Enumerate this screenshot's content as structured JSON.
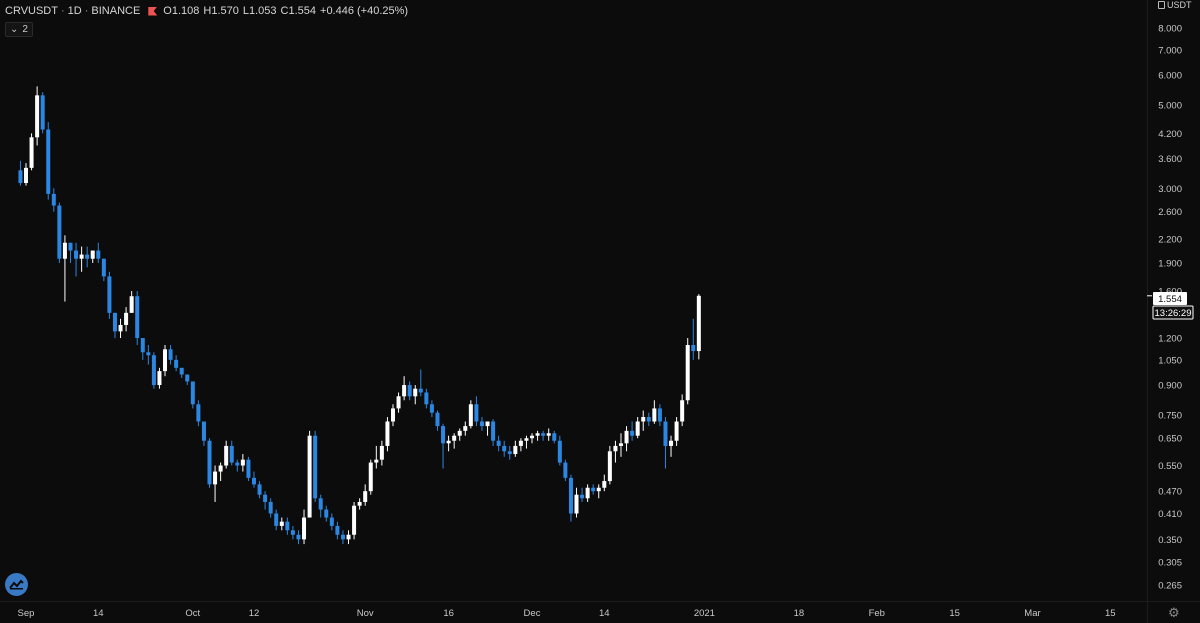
{
  "legend": {
    "symbol": "CRVUSDT",
    "interval": "1D",
    "exchange": "BINANCE",
    "open": "O1.108",
    "high": "H1.570",
    "low": "L1.053",
    "close": "C1.554",
    "change": "+0.446 (+40.25%)"
  },
  "indicator_toggle": "2",
  "price_axis": {
    "currency": "USDT"
  },
  "last_price": {
    "price": "1.554",
    "countdown": "13:26:29"
  },
  "colors": {
    "up": "#ffffff",
    "down": "#2c87e3",
    "background": "#0c0c0c",
    "text": "#c9c9c9"
  },
  "icons": {
    "logo": "tradingview-logo-icon",
    "settings": "gear-icon"
  },
  "chart_data": {
    "type": "candlestick",
    "title": "",
    "xlabel": "",
    "ylabel": "",
    "y_scale": "log",
    "ylim": [
      0.24,
      9.5
    ],
    "y_ticks": [
      "8.000",
      "7.000",
      "6.000",
      "5.000",
      "4.200",
      "3.600",
      "3.000",
      "2.600",
      "2.200",
      "1.900",
      "1.600",
      "1.200",
      "1.050",
      "0.900",
      "0.750",
      "0.650",
      "0.550",
      "0.470",
      "0.410",
      "0.350",
      "0.305",
      "0.265"
    ],
    "x_ticks": [
      {
        "label": "Sep",
        "date": "2020-09-01"
      },
      {
        "label": "14",
        "date": "2020-09-14"
      },
      {
        "label": "Oct",
        "date": "2020-10-01"
      },
      {
        "label": "12",
        "date": "2020-10-12"
      },
      {
        "label": "Nov",
        "date": "2020-11-01"
      },
      {
        "label": "16",
        "date": "2020-11-16"
      },
      {
        "label": "Dec",
        "date": "2020-12-01"
      },
      {
        "label": "14",
        "date": "2020-12-14"
      },
      {
        "label": "2021",
        "date": "2021-01-01"
      },
      {
        "label": "18",
        "date": "2021-01-18"
      },
      {
        "label": "Feb",
        "date": "2021-02-01"
      },
      {
        "label": "15",
        "date": "2021-02-15"
      },
      {
        "label": "Mar",
        "date": "2021-03-01"
      },
      {
        "label": "15",
        "date": "2021-03-15"
      }
    ],
    "x_range": [
      "2020-09-01",
      "2021-03-18"
    ],
    "grid": false,
    "first_date": "2020-08-31",
    "candles": [
      [
        3.35,
        3.55,
        3.05,
        3.1
      ],
      [
        3.1,
        3.5,
        3.05,
        3.4
      ],
      [
        3.4,
        4.2,
        3.35,
        4.1
      ],
      [
        4.1,
        5.6,
        3.9,
        5.3
      ],
      [
        5.3,
        5.4,
        4.2,
        4.3
      ],
      [
        4.3,
        4.5,
        2.8,
        2.9
      ],
      [
        2.9,
        3.0,
        2.6,
        2.7
      ],
      [
        2.7,
        2.75,
        1.9,
        1.95
      ],
      [
        1.95,
        2.25,
        1.5,
        2.15
      ],
      [
        2.15,
        2.15,
        1.9,
        2.05
      ],
      [
        2.05,
        2.15,
        1.75,
        1.95
      ],
      [
        1.95,
        2.1,
        1.8,
        2.0
      ],
      [
        2.0,
        2.1,
        1.85,
        1.95
      ],
      [
        1.95,
        2.05,
        1.9,
        2.05
      ],
      [
        2.05,
        2.15,
        1.9,
        1.95
      ],
      [
        1.95,
        1.95,
        1.7,
        1.75
      ],
      [
        1.75,
        1.8,
        1.35,
        1.4
      ],
      [
        1.4,
        1.4,
        1.2,
        1.25
      ],
      [
        1.25,
        1.35,
        1.2,
        1.3
      ],
      [
        1.3,
        1.45,
        1.25,
        1.4
      ],
      [
        1.4,
        1.6,
        1.4,
        1.55
      ],
      [
        1.55,
        1.6,
        1.15,
        1.2
      ],
      [
        1.2,
        1.2,
        1.05,
        1.1
      ],
      [
        1.1,
        1.15,
        1.02,
        1.08
      ],
      [
        1.08,
        1.1,
        0.88,
        0.9
      ],
      [
        0.9,
        1.0,
        0.88,
        0.98
      ],
      [
        0.98,
        1.15,
        0.95,
        1.12
      ],
      [
        1.12,
        1.15,
        1.02,
        1.05
      ],
      [
        1.05,
        1.08,
        0.98,
        1.0
      ],
      [
        1.0,
        1.0,
        0.94,
        0.96
      ],
      [
        0.96,
        0.96,
        0.9,
        0.92
      ],
      [
        0.92,
        0.92,
        0.78,
        0.8
      ],
      [
        0.8,
        0.82,
        0.7,
        0.72
      ],
      [
        0.72,
        0.72,
        0.62,
        0.64
      ],
      [
        0.64,
        0.65,
        0.48,
        0.49
      ],
      [
        0.49,
        0.55,
        0.44,
        0.53
      ],
      [
        0.53,
        0.56,
        0.5,
        0.55
      ],
      [
        0.55,
        0.64,
        0.54,
        0.62
      ],
      [
        0.62,
        0.64,
        0.55,
        0.56
      ],
      [
        0.56,
        0.57,
        0.53,
        0.55
      ],
      [
        0.55,
        0.59,
        0.53,
        0.57
      ],
      [
        0.57,
        0.58,
        0.5,
        0.51
      ],
      [
        0.51,
        0.53,
        0.48,
        0.49
      ],
      [
        0.49,
        0.5,
        0.45,
        0.46
      ],
      [
        0.46,
        0.47,
        0.42,
        0.44
      ],
      [
        0.44,
        0.45,
        0.4,
        0.41
      ],
      [
        0.41,
        0.42,
        0.37,
        0.38
      ],
      [
        0.38,
        0.4,
        0.37,
        0.39
      ],
      [
        0.39,
        0.4,
        0.36,
        0.37
      ],
      [
        0.37,
        0.38,
        0.35,
        0.36
      ],
      [
        0.36,
        0.37,
        0.34,
        0.35
      ],
      [
        0.35,
        0.42,
        0.34,
        0.4
      ],
      [
        0.4,
        0.68,
        0.4,
        0.66
      ],
      [
        0.66,
        0.68,
        0.44,
        0.45
      ],
      [
        0.45,
        0.46,
        0.4,
        0.42
      ],
      [
        0.42,
        0.43,
        0.39,
        0.4
      ],
      [
        0.4,
        0.41,
        0.37,
        0.38
      ],
      [
        0.38,
        0.39,
        0.35,
        0.36
      ],
      [
        0.36,
        0.37,
        0.34,
        0.35
      ],
      [
        0.35,
        0.37,
        0.34,
        0.36
      ],
      [
        0.36,
        0.44,
        0.35,
        0.43
      ],
      [
        0.43,
        0.45,
        0.42,
        0.44
      ],
      [
        0.44,
        0.49,
        0.43,
        0.47
      ],
      [
        0.47,
        0.57,
        0.46,
        0.56
      ],
      [
        0.56,
        0.62,
        0.54,
        0.57
      ],
      [
        0.57,
        0.64,
        0.55,
        0.62
      ],
      [
        0.62,
        0.74,
        0.6,
        0.72
      ],
      [
        0.72,
        0.8,
        0.7,
        0.78
      ],
      [
        0.78,
        0.86,
        0.76,
        0.84
      ],
      [
        0.84,
        0.95,
        0.82,
        0.9
      ],
      [
        0.9,
        0.92,
        0.82,
        0.84
      ],
      [
        0.84,
        0.9,
        0.8,
        0.88
      ],
      [
        0.88,
        0.99,
        0.84,
        0.86
      ],
      [
        0.86,
        0.88,
        0.78,
        0.8
      ],
      [
        0.8,
        0.82,
        0.74,
        0.76
      ],
      [
        0.76,
        0.77,
        0.68,
        0.7
      ],
      [
        0.7,
        0.71,
        0.54,
        0.63
      ],
      [
        0.63,
        0.66,
        0.6,
        0.64
      ],
      [
        0.64,
        0.67,
        0.61,
        0.66
      ],
      [
        0.66,
        0.69,
        0.64,
        0.68
      ],
      [
        0.68,
        0.72,
        0.66,
        0.7
      ],
      [
        0.7,
        0.82,
        0.69,
        0.8
      ],
      [
        0.8,
        0.84,
        0.7,
        0.72
      ],
      [
        0.72,
        0.74,
        0.68,
        0.7
      ],
      [
        0.7,
        0.72,
        0.66,
        0.72
      ],
      [
        0.72,
        0.73,
        0.62,
        0.64
      ],
      [
        0.64,
        0.66,
        0.6,
        0.62
      ],
      [
        0.62,
        0.64,
        0.58,
        0.6
      ],
      [
        0.6,
        0.62,
        0.57,
        0.59
      ],
      [
        0.59,
        0.64,
        0.58,
        0.62
      ],
      [
        0.62,
        0.65,
        0.6,
        0.64
      ],
      [
        0.64,
        0.66,
        0.61,
        0.65
      ],
      [
        0.65,
        0.67,
        0.63,
        0.66
      ],
      [
        0.66,
        0.68,
        0.64,
        0.67
      ],
      [
        0.67,
        0.68,
        0.64,
        0.66
      ],
      [
        0.66,
        0.69,
        0.64,
        0.67
      ],
      [
        0.67,
        0.68,
        0.63,
        0.64
      ],
      [
        0.64,
        0.66,
        0.55,
        0.56
      ],
      [
        0.56,
        0.57,
        0.5,
        0.51
      ],
      [
        0.51,
        0.52,
        0.39,
        0.41
      ],
      [
        0.41,
        0.48,
        0.4,
        0.46
      ],
      [
        0.46,
        0.48,
        0.44,
        0.45
      ],
      [
        0.45,
        0.49,
        0.44,
        0.48
      ],
      [
        0.48,
        0.49,
        0.46,
        0.47
      ],
      [
        0.47,
        0.49,
        0.45,
        0.48
      ],
      [
        0.48,
        0.52,
        0.47,
        0.5
      ],
      [
        0.5,
        0.62,
        0.49,
        0.6
      ],
      [
        0.6,
        0.64,
        0.56,
        0.62
      ],
      [
        0.62,
        0.67,
        0.58,
        0.63
      ],
      [
        0.63,
        0.7,
        0.6,
        0.68
      ],
      [
        0.68,
        0.72,
        0.64,
        0.66
      ],
      [
        0.66,
        0.74,
        0.65,
        0.72
      ],
      [
        0.72,
        0.77,
        0.68,
        0.74
      ],
      [
        0.74,
        0.76,
        0.7,
        0.72
      ],
      [
        0.72,
        0.82,
        0.71,
        0.78
      ],
      [
        0.78,
        0.8,
        0.7,
        0.72
      ],
      [
        0.72,
        0.74,
        0.54,
        0.62
      ],
      [
        0.62,
        0.66,
        0.58,
        0.64
      ],
      [
        0.64,
        0.74,
        0.62,
        0.72
      ],
      [
        0.72,
        0.85,
        0.7,
        0.82
      ],
      [
        0.82,
        1.2,
        0.8,
        1.15
      ],
      [
        1.15,
        1.35,
        1.05,
        1.108
      ],
      [
        1.108,
        1.57,
        1.053,
        1.554
      ]
    ]
  }
}
